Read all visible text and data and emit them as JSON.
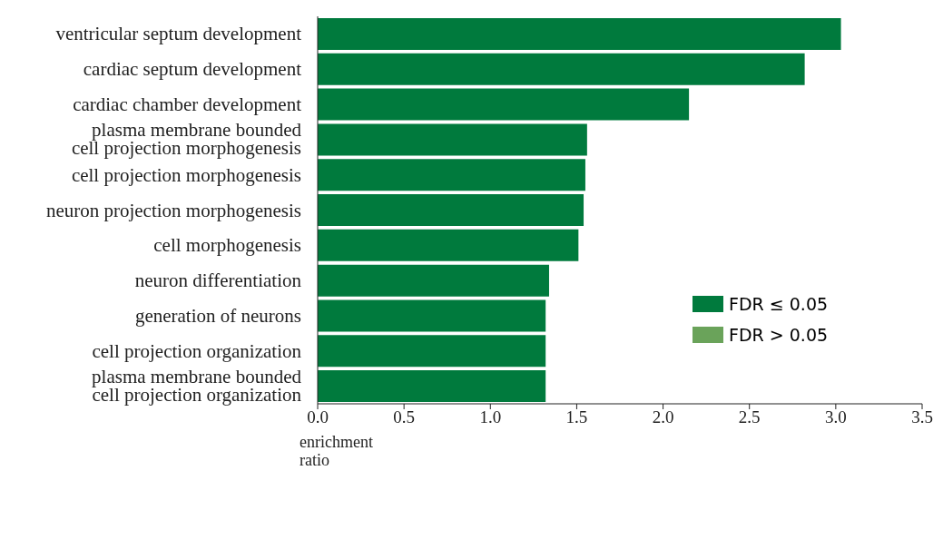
{
  "chart_data": {
    "type": "bar",
    "orientation": "horizontal",
    "stacked": true,
    "categories": [
      "ventricular septum development",
      "cardiac septum development",
      "cardiac chamber development",
      "plasma membrane bounded\ncell projection morphogenesis",
      "cell projection morphogenesis",
      "neuron projection morphogenesis",
      "cell morphogenesis",
      "neuron differentiation",
      "generation of neurons",
      "cell projection organization",
      "plasma membrane bounded\ncell projection organization"
    ],
    "series": [
      {
        "name": "FDR ≤ 0.05",
        "color": "#007a3d",
        "values": [
          3.03,
          2.82,
          2.15,
          1.56,
          1.55,
          1.54,
          1.51,
          1.34,
          1.32,
          1.32,
          1.32
        ]
      },
      {
        "name": "FDR > 0.05",
        "color": "#6aa35a",
        "values": [
          null,
          null,
          null,
          null,
          null,
          null,
          null,
          null,
          null,
          null,
          null
        ]
      }
    ],
    "xlim": [
      0,
      3.5
    ],
    "xticks": [
      {
        "value": 0,
        "label": "0.0"
      },
      {
        "value": 0.5,
        "label": "0.5"
      },
      {
        "value": 1,
        "label": "1.0"
      },
      {
        "value": 1.5,
        "label": "1.5"
      },
      {
        "value": 2,
        "label": "2.0"
      },
      {
        "value": 2.5,
        "label": "2.5"
      },
      {
        "value": 3,
        "label": "3.0"
      },
      {
        "value": 3.5,
        "label": "3.5"
      }
    ],
    "xlabel": "enrichment\nratio",
    "grid": false,
    "legend": "right"
  }
}
